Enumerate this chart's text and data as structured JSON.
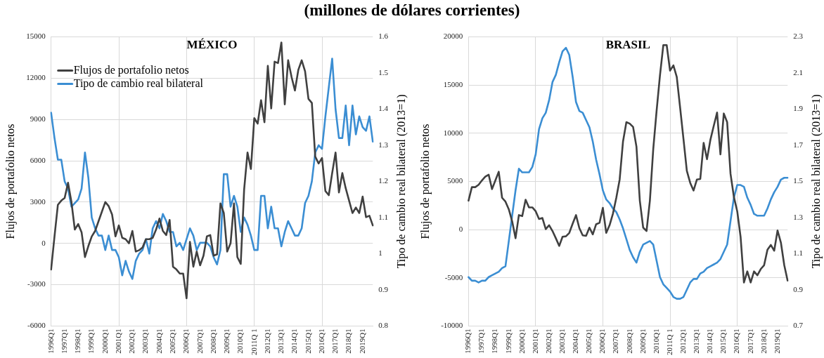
{
  "chart_data": [
    {
      "type": "other",
      "title": "(millones de dólares corrientes)"
    },
    {
      "type": "line",
      "title": "MÉXICO",
      "ylabel": "Flujos de portafolio netos",
      "y2label": "Tipo de cambio real bilateral (2013=1)",
      "categories": [
        "1996Q1",
        null,
        null,
        null,
        "1997Q1",
        null,
        null,
        null,
        "1998Q1",
        null,
        null,
        null,
        "1999Q1",
        null,
        null,
        null,
        "2000Q1",
        null,
        null,
        null,
        "2001Q1",
        null,
        null,
        null,
        "2002Q1",
        null,
        null,
        null,
        "2003Q1",
        null,
        null,
        null,
        "2004Q1",
        null,
        null,
        null,
        "2005Q1",
        null,
        null,
        null,
        "2006Q1",
        null,
        null,
        null,
        "2007Q1",
        null,
        null,
        null,
        "2008Q1",
        null,
        null,
        null,
        "2009Q1",
        null,
        null,
        null,
        "2010Q1",
        null,
        null,
        null,
        "2011Q 1",
        null,
        null,
        null,
        "2012Q1",
        null,
        null,
        null,
        "2013Q1",
        null,
        null,
        null,
        "2014Q1",
        null,
        null,
        null,
        "2015Q1",
        null,
        null,
        null,
        "2016Q1",
        null,
        null,
        null,
        "2017Q1",
        null,
        null,
        null,
        "2018Q1",
        null,
        null,
        null,
        "2019Q1",
        null,
        null,
        null
      ],
      "series": [
        {
          "name": "Flujos de portafolio netos",
          "color": "#404040",
          "values": [
            -1900,
            500,
            2800,
            3100,
            3300,
            4400,
            3000,
            1000,
            1400,
            800,
            -1000,
            -200,
            500,
            900,
            1600,
            2300,
            3000,
            2700,
            2100,
            500,
            1300,
            400,
            300,
            0,
            900,
            -600,
            -500,
            -300,
            300,
            300,
            400,
            1000,
            1800,
            900,
            600,
            1700,
            -1700,
            -1900,
            -2200,
            -2200,
            -4000,
            100,
            -1700,
            -600,
            -1600,
            -900,
            500,
            600,
            -900,
            -800,
            2900,
            2200,
            -600,
            0,
            2900,
            -1000,
            -1500,
            3900,
            6600,
            5400,
            9100,
            8700,
            10400,
            8800,
            12900,
            9800,
            13200,
            13100,
            14600,
            10100,
            13300,
            12100,
            11100,
            12600,
            13300,
            12500,
            10500,
            10200,
            6300,
            5800,
            6200,
            3800,
            3500,
            5100,
            6600,
            3700,
            5100,
            4000,
            3100,
            2200,
            2600,
            2200,
            3400,
            1900,
            2000,
            1300
          ]
        },
        {
          "name": "Tipo de cambio real bilateral",
          "color": "#3b8ed3",
          "axis": "y2",
          "values": [
            1.39,
            1.32,
            1.26,
            1.26,
            1.2,
            1.18,
            1.13,
            1.14,
            1.15,
            1.18,
            1.28,
            1.21,
            1.1,
            1.07,
            1.05,
            1.05,
            1.01,
            1.05,
            1.01,
            1.01,
            0.99,
            0.94,
            0.98,
            0.95,
            0.93,
            0.98,
            1.0,
            1.01,
            1.04,
            1.0,
            1.07,
            1.09,
            1.07,
            1.11,
            1.09,
            1.06,
            1.06,
            1.02,
            1.03,
            1.01,
            1.04,
            1.07,
            1.05,
            1.01,
            1.03,
            1.03,
            1.03,
            1.02,
            0.99,
            0.97,
            1.01,
            1.22,
            1.22,
            1.13,
            1.16,
            1.13,
            1.06,
            1.1,
            1.08,
            1.05,
            1.01,
            1.01,
            1.16,
            1.16,
            1.07,
            1.13,
            1.07,
            1.07,
            1.02,
            1.06,
            1.09,
            1.07,
            1.05,
            1.05,
            1.07,
            1.14,
            1.16,
            1.2,
            1.28,
            1.3,
            1.29,
            1.38,
            1.46,
            1.54,
            1.4,
            1.32,
            1.32,
            1.41,
            1.3,
            1.41,
            1.33,
            1.38,
            1.35,
            1.34,
            1.38,
            1.31
          ]
        }
      ],
      "ylim": [
        -6000,
        15000
      ],
      "yticks": [
        -6000,
        -3000,
        0,
        3000,
        6000,
        9000,
        12000,
        15000
      ],
      "y2lim": [
        0.8,
        1.6
      ],
      "y2ticks": [
        0.8,
        0.9,
        1,
        1.1,
        1.2,
        1.3,
        1.4,
        1.5,
        1.6
      ],
      "grid": true,
      "legend": "top left",
      "marker": "none"
    },
    {
      "type": "line",
      "title": "BRASIL",
      "ylabel": "Flujos de portafolio netos",
      "y2label": "Tipo de cambio real bilateral (2013=1)",
      "categories": [
        "1996Q1",
        null,
        null,
        null,
        "1997Q1",
        null,
        null,
        null,
        "1998Q1",
        null,
        null,
        null,
        "1999Q1",
        null,
        null,
        null,
        "2000Q1",
        null,
        null,
        null,
        "2001Q1",
        null,
        null,
        null,
        "2002Q1",
        null,
        null,
        null,
        "2003Q1",
        null,
        null,
        null,
        "2004Q1",
        null,
        null,
        null,
        "2005Q1",
        null,
        null,
        null,
        "2006Q1",
        null,
        null,
        null,
        "2007Q1",
        null,
        null,
        null,
        "2008Q1",
        null,
        null,
        null,
        "2009Q1",
        null,
        null,
        null,
        "2010Q1",
        null,
        null,
        null,
        "2011Q 1",
        null,
        null,
        null,
        "2012Q1",
        null,
        null,
        null,
        "2013Q1",
        null,
        null,
        null,
        "2014Q1",
        null,
        null,
        null,
        "2015Q1",
        null,
        null,
        null,
        "2016Q1",
        null,
        null,
        null,
        "2017Q1",
        null,
        null,
        null,
        "2018Q1",
        null,
        null,
        null,
        "2019Q1",
        null,
        null,
        null
      ],
      "series": [
        {
          "color": "#404040",
          "values": [
            3000,
            4400,
            4400,
            4650,
            5100,
            5500,
            5700,
            4200,
            5100,
            6000,
            3300,
            2900,
            2100,
            850,
            -900,
            1500,
            1400,
            3100,
            2300,
            2300,
            1900,
            1100,
            1200,
            50,
            450,
            -150,
            -900,
            -1700,
            -750,
            -700,
            -350,
            600,
            1500,
            150,
            -600,
            -650,
            200,
            -500,
            550,
            700,
            2250,
            -350,
            450,
            1650,
            3300,
            5200,
            9150,
            11150,
            11000,
            10650,
            8600,
            3000,
            200,
            -150,
            3000,
            8350,
            12350,
            16000,
            19150,
            19150,
            16500,
            17050,
            15850,
            12650,
            9400,
            6100,
            4850,
            4050,
            5200,
            5250,
            9000,
            7300,
            9300,
            10750,
            12150,
            7800,
            12050,
            11150,
            5800,
            3400,
            1900,
            -750,
            -5500,
            -4350,
            -5500,
            -4350,
            -4750,
            -4100,
            -3700,
            -2100,
            -1600,
            -2200,
            -100,
            -1350,
            -3700,
            -5300
          ]
        },
        {
          "color": "#3b8ed3",
          "axis": "y2",
          "values": [
            0.97,
            0.95,
            0.95,
            0.94,
            0.95,
            0.95,
            0.97,
            0.98,
            0.99,
            1.0,
            1.02,
            1.03,
            1.17,
            1.31,
            1.45,
            1.57,
            1.55,
            1.55,
            1.55,
            1.58,
            1.65,
            1.79,
            1.85,
            1.88,
            1.95,
            2.05,
            2.09,
            2.16,
            2.22,
            2.24,
            2.2,
            2.08,
            1.94,
            1.89,
            1.88,
            1.84,
            1.8,
            1.72,
            1.62,
            1.54,
            1.45,
            1.4,
            1.38,
            1.35,
            1.33,
            1.29,
            1.24,
            1.18,
            1.12,
            1.08,
            1.05,
            1.11,
            1.15,
            1.16,
            1.17,
            1.15,
            1.06,
            0.97,
            0.93,
            0.91,
            0.89,
            0.86,
            0.85,
            0.85,
            0.86,
            0.9,
            0.94,
            0.96,
            0.96,
            0.99,
            1.0,
            1.02,
            1.03,
            1.04,
            1.05,
            1.07,
            1.11,
            1.15,
            1.28,
            1.41,
            1.48,
            1.48,
            1.47,
            1.41,
            1.37,
            1.32,
            1.31,
            1.31,
            1.31,
            1.35,
            1.4,
            1.44,
            1.47,
            1.51,
            1.52,
            1.52
          ]
        }
      ],
      "ylim": [
        -10000,
        20000
      ],
      "yticks": [
        -10000,
        -5000,
        0,
        5000,
        10000,
        15000,
        20000
      ],
      "y2lim": [
        0.7,
        2.3
      ],
      "y2ticks": [
        0.7,
        0.9,
        1.1,
        1.3,
        1.5,
        1.7,
        1.9,
        2.1,
        2.3
      ],
      "grid": true,
      "marker": "none"
    }
  ]
}
